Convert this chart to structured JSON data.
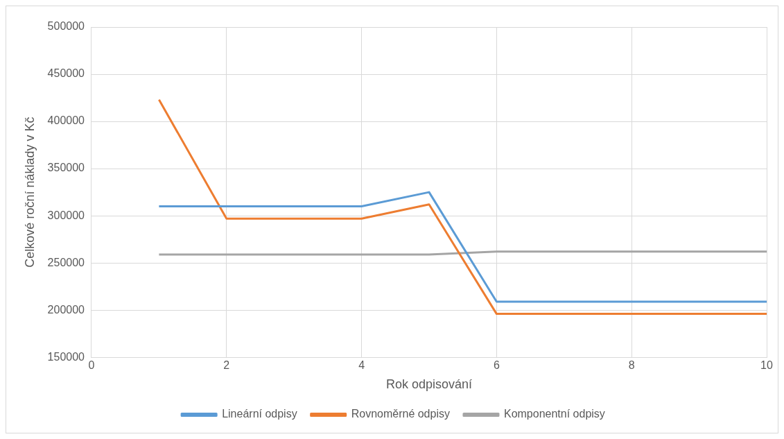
{
  "chart_data": {
    "type": "line",
    "xlabel": "Rok odpisování",
    "ylabel": "Celkové roční náklady v Kč",
    "x": [
      1,
      2,
      3,
      4,
      5,
      6,
      7,
      8,
      9,
      10
    ],
    "series": [
      {
        "name": "Lineární odpisy",
        "color": "#5b9bd5",
        "values": [
          310000,
          310000,
          310000,
          310000,
          325000,
          209000,
          209000,
          209000,
          209000,
          209000
        ]
      },
      {
        "name": "Rovnoměrné odpisy",
        "color": "#ed7d31",
        "values": [
          423000,
          297000,
          297000,
          297000,
          312000,
          196000,
          196000,
          196000,
          196000,
          196000
        ]
      },
      {
        "name": "Komponentní odpisy",
        "color": "#a5a5a5",
        "values": [
          259000,
          259000,
          259000,
          259000,
          259000,
          262000,
          262000,
          262000,
          262000,
          262000
        ]
      }
    ],
    "xlim": [
      0,
      10
    ],
    "xticks": [
      0,
      2,
      4,
      6,
      8,
      10
    ],
    "ylim": [
      150000,
      500000
    ],
    "yticks": [
      150000,
      200000,
      250000,
      300000,
      350000,
      400000,
      450000,
      500000
    ],
    "grid": true,
    "legend": "bottom",
    "marker": "none",
    "line_style": "solid"
  }
}
